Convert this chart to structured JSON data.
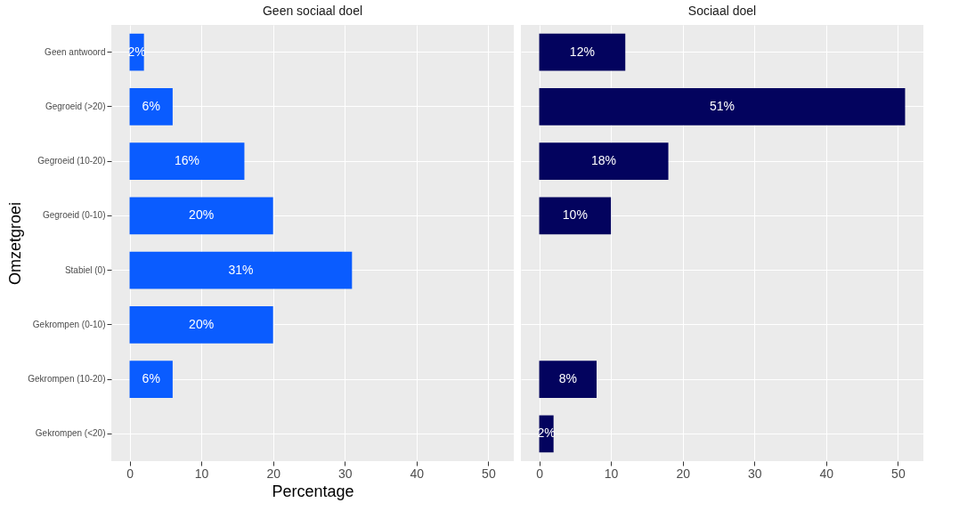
{
  "chart_data": [
    {
      "type": "bar",
      "orientation": "horizontal",
      "title": "Geen sociaal doel",
      "xlabel": "Percentage",
      "ylabel": "Omzetgroei",
      "categories": [
        "Geen antwoord",
        "Gegroeid (>20)",
        "Gegroeid (10-20)",
        "Gegroeid (0-10)",
        "Stabiel (0)",
        "Gekrompen (0-10)",
        "Gekrompen (10-20)",
        "Gekrompen (<20)"
      ],
      "values": [
        2,
        6,
        16,
        20,
        31,
        20,
        6,
        null
      ],
      "value_labels": [
        "2%",
        "6%",
        "16%",
        "20%",
        "31%",
        "20%",
        "6%",
        null
      ],
      "color": "#0a5cff",
      "xlim": [
        -2.55,
        53.55
      ],
      "xticks": [
        0,
        10,
        20,
        30,
        40,
        50
      ],
      "grid": true
    },
    {
      "type": "bar",
      "orientation": "horizontal",
      "title": "Sociaal doel",
      "categories": [
        "Geen antwoord",
        "Gegroeid (>20)",
        "Gegroeid (10-20)",
        "Gegroeid (0-10)",
        "Stabiel (0)",
        "Gekrompen (0-10)",
        "Gekrompen (10-20)",
        "Gekrompen (<20)"
      ],
      "values": [
        12,
        51,
        18,
        10,
        null,
        null,
        8,
        2
      ],
      "value_labels": [
        "12%",
        "51%",
        "18%",
        "10%",
        null,
        null,
        "8%",
        "2%"
      ],
      "color": "#03035e",
      "xlim": [
        -2.55,
        53.55
      ],
      "xticks": [
        0,
        10,
        20,
        30,
        40,
        50
      ],
      "grid": true,
      "tick_labels": "x"
    }
  ]
}
